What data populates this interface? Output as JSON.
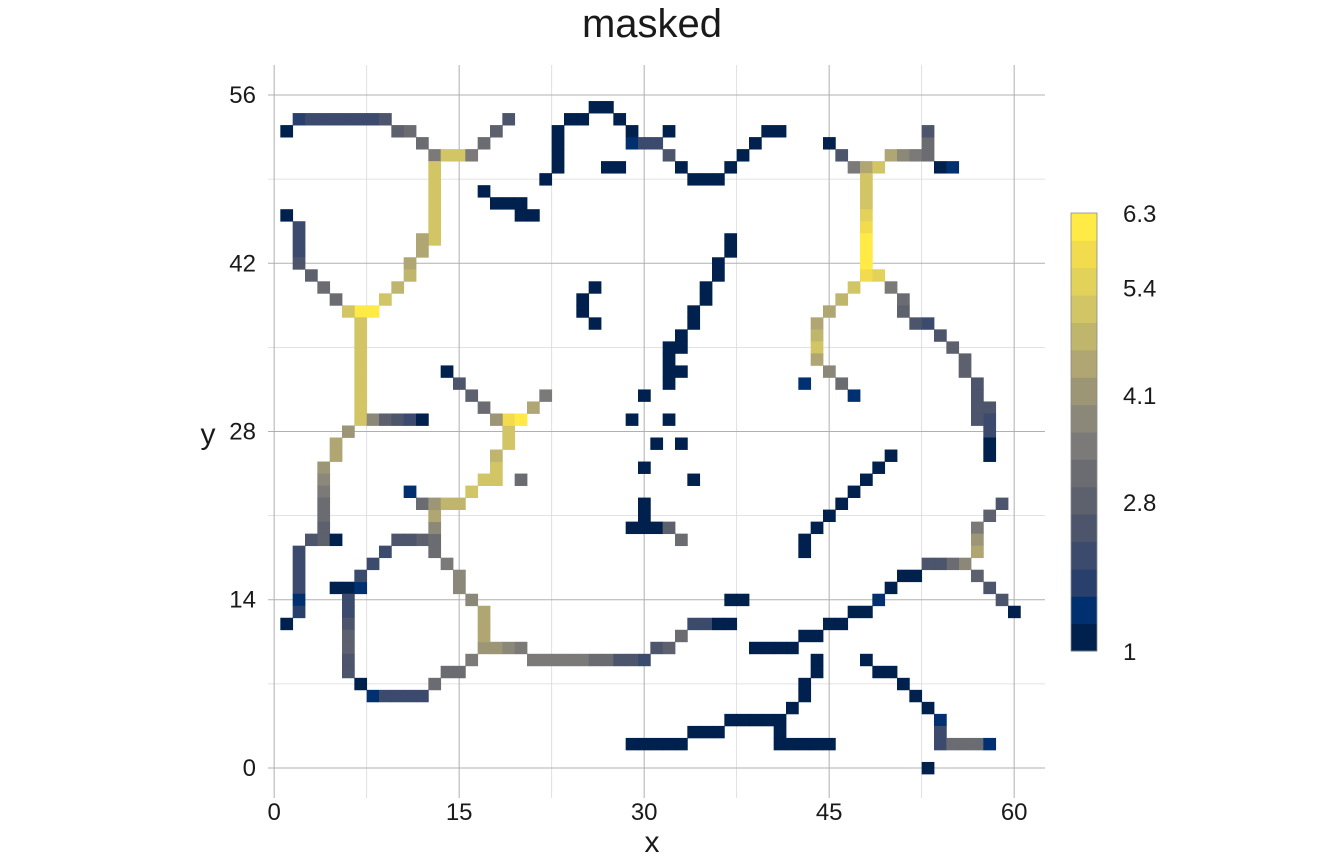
{
  "chart_data": {
    "type": "heatmap",
    "title": "masked",
    "xlabel": "x",
    "ylabel": "y",
    "xlim": [
      -0.5,
      62.5
    ],
    "ylim": [
      -2.5,
      58.5
    ],
    "x_ticks": [
      0,
      15,
      30,
      45,
      60
    ],
    "y_ticks": [
      0,
      14,
      28,
      42,
      56
    ],
    "grid": true,
    "legend_position": "right",
    "colorbar": {
      "min": 1,
      "max": 6.3,
      "tick_values": [
        6.3,
        5.4,
        4.1,
        2.8,
        1
      ],
      "tick_labels": [
        "6.3",
        "5.4",
        "4.1",
        "2.8",
        "1"
      ],
      "colors": [
        "#00204d",
        "#00306f",
        "#2a406c",
        "#3c4a6e",
        "#4c556b",
        "#5d616e",
        "#6b6c72",
        "#7b7a78",
        "#8c8879",
        "#9c9677",
        "#afa673",
        "#c0b56d",
        "#d2c566",
        "#e3d25a",
        "#f2dc4d",
        "#ffea46"
      ]
    },
    "cell_size": 1,
    "cells": [
      [
        1,
        53,
        1.1
      ],
      [
        2,
        54,
        1.8
      ],
      [
        3,
        54,
        2.1
      ],
      [
        4,
        54,
        2.2
      ],
      [
        5,
        54,
        2.2
      ],
      [
        6,
        54,
        2.2
      ],
      [
        7,
        54,
        2.2
      ],
      [
        8,
        54,
        2.2
      ],
      [
        9,
        54,
        2.4
      ],
      [
        10,
        53,
        2.9
      ],
      [
        11,
        53,
        3.2
      ],
      [
        12,
        52,
        3.3
      ],
      [
        13,
        51,
        3.6
      ],
      [
        14,
        51,
        5.0
      ],
      [
        15,
        51,
        5.0
      ],
      [
        16,
        51,
        3.5
      ],
      [
        17,
        52,
        3.3
      ],
      [
        18,
        53,
        2.8
      ],
      [
        19,
        54,
        2.5
      ],
      [
        13,
        50,
        5.0
      ],
      [
        13,
        49,
        5.0
      ],
      [
        13,
        48,
        5.0
      ],
      [
        13,
        47,
        5.0
      ],
      [
        13,
        46,
        5.0
      ],
      [
        13,
        45,
        5.0
      ],
      [
        13,
        44,
        5.0
      ],
      [
        12,
        44,
        4.6
      ],
      [
        12,
        43,
        4.6
      ],
      [
        11,
        42,
        4.4
      ],
      [
        11,
        41,
        4.8
      ],
      [
        10,
        40,
        4.8
      ],
      [
        9,
        39,
        5.0
      ],
      [
        8,
        38,
        6.1
      ],
      [
        7,
        38,
        6.3
      ],
      [
        6,
        38,
        5.0
      ],
      [
        1,
        46,
        1.1
      ],
      [
        2,
        45,
        2.0
      ],
      [
        2,
        44,
        2.2
      ],
      [
        2,
        43,
        2.3
      ],
      [
        2,
        42,
        2.4
      ],
      [
        3,
        41,
        2.8
      ],
      [
        4,
        40,
        3.0
      ],
      [
        5,
        39,
        3.3
      ],
      [
        7,
        37,
        5.0
      ],
      [
        7,
        36,
        5.0
      ],
      [
        7,
        35,
        5.0
      ],
      [
        7,
        34,
        5.0
      ],
      [
        7,
        33,
        5.0
      ],
      [
        7,
        32,
        5.0
      ],
      [
        7,
        31,
        5.0
      ],
      [
        7,
        30,
        5.0
      ],
      [
        7,
        29,
        5.0
      ],
      [
        8,
        29,
        3.8
      ],
      [
        9,
        29,
        2.8
      ],
      [
        10,
        29,
        2.5
      ],
      [
        11,
        29,
        2.2
      ],
      [
        12,
        29,
        1.3
      ],
      [
        6,
        28,
        4.2
      ],
      [
        5,
        27,
        4.5
      ],
      [
        5,
        26,
        4.5
      ],
      [
        4,
        25,
        4.2
      ],
      [
        4,
        24,
        3.8
      ],
      [
        4,
        23,
        3.5
      ],
      [
        4,
        22,
        3.0
      ],
      [
        4,
        21,
        3.0
      ],
      [
        4,
        20,
        2.8
      ],
      [
        3,
        19,
        2.6
      ],
      [
        4,
        19,
        2.9
      ],
      [
        5,
        19,
        1.2
      ],
      [
        2,
        18,
        2.0
      ],
      [
        2,
        17,
        2.2
      ],
      [
        2,
        16,
        2.2
      ],
      [
        2,
        15,
        2.2
      ],
      [
        2,
        14,
        1.6
      ],
      [
        2,
        13,
        1.8
      ],
      [
        1,
        12,
        1.1
      ],
      [
        5,
        15,
        1.1
      ],
      [
        6,
        15,
        1.2
      ],
      [
        7,
        15,
        1.4
      ],
      [
        6,
        14,
        2.3
      ],
      [
        6,
        13,
        2.3
      ],
      [
        6,
        12,
        2.5
      ],
      [
        6,
        11,
        2.8
      ],
      [
        6,
        10,
        2.7
      ],
      [
        6,
        9,
        2.6
      ],
      [
        6,
        8,
        2.5
      ],
      [
        7,
        7,
        1.3
      ],
      [
        8,
        6,
        1.4
      ],
      [
        9,
        6,
        2.3
      ],
      [
        10,
        6,
        2.3
      ],
      [
        11,
        6,
        2.3
      ],
      [
        12,
        6,
        2.3
      ],
      [
        13,
        7,
        3.2
      ],
      [
        14,
        8,
        3.2
      ],
      [
        15,
        8,
        3.2
      ],
      [
        16,
        9,
        3.4
      ],
      [
        17,
        10,
        4.0
      ],
      [
        17,
        11,
        4.4
      ],
      [
        17,
        12,
        4.4
      ],
      [
        17,
        13,
        4.4
      ],
      [
        16,
        14,
        3.9
      ],
      [
        15,
        15,
        3.8
      ],
      [
        15,
        16,
        3.9
      ],
      [
        14,
        17,
        3.4
      ],
      [
        13,
        18,
        3.0
      ],
      [
        12,
        19,
        2.8
      ],
      [
        11,
        19,
        2.6
      ],
      [
        10,
        19,
        2.5
      ],
      [
        9,
        18,
        2.3
      ],
      [
        8,
        17,
        2.2
      ],
      [
        7,
        16,
        2.0
      ],
      [
        13,
        19,
        3.0
      ],
      [
        13,
        20,
        3.8
      ],
      [
        13,
        21,
        4.4
      ],
      [
        12,
        22,
        3.3
      ],
      [
        11,
        23,
        1.4
      ],
      [
        13,
        22,
        4.2
      ],
      [
        14,
        22,
        4.7
      ],
      [
        15,
        22,
        4.9
      ],
      [
        16,
        23,
        5.0
      ],
      [
        17,
        24,
        5.1
      ],
      [
        18,
        24,
        5.2
      ],
      [
        18,
        25,
        5.0
      ],
      [
        18,
        26,
        4.8
      ],
      [
        19,
        27,
        5.1
      ],
      [
        19,
        28,
        5.2
      ],
      [
        19,
        29,
        5.8
      ],
      [
        20,
        29,
        6.0
      ],
      [
        18,
        29,
        4.0
      ],
      [
        17,
        30,
        3.2
      ],
      [
        16,
        31,
        2.8
      ],
      [
        15,
        32,
        2.4
      ],
      [
        14,
        33,
        1.2
      ],
      [
        21,
        30,
        4.5
      ],
      [
        22,
        31,
        3.6
      ],
      [
        20,
        24,
        3.0
      ],
      [
        18,
        10,
        4.0
      ],
      [
        19,
        10,
        3.9
      ],
      [
        20,
        10,
        3.5
      ],
      [
        21,
        9,
        3.4
      ],
      [
        22,
        9,
        3.4
      ],
      [
        23,
        9,
        3.4
      ],
      [
        24,
        9,
        3.4
      ],
      [
        25,
        9,
        3.4
      ],
      [
        26,
        9,
        3.2
      ],
      [
        27,
        9,
        3.0
      ],
      [
        28,
        9,
        2.6
      ],
      [
        29,
        9,
        2.4
      ],
      [
        30,
        9,
        2.2
      ],
      [
        31,
        10,
        2.6
      ],
      [
        32,
        10,
        2.8
      ],
      [
        33,
        11,
        3.0
      ],
      [
        34,
        12,
        2.3
      ],
      [
        35,
        12,
        2.2
      ],
      [
        36,
        12,
        1.3
      ],
      [
        37,
        12,
        1.1
      ],
      [
        31,
        20,
        1.1
      ],
      [
        29,
        20,
        1.1
      ],
      [
        30,
        20,
        1.2
      ],
      [
        30,
        21,
        1.1
      ],
      [
        30,
        22,
        1.1
      ],
      [
        32,
        20,
        2.8
      ],
      [
        33,
        19,
        3.2
      ],
      [
        29,
        29,
        1.1
      ],
      [
        30,
        31,
        1.1
      ],
      [
        31,
        27,
        1.1
      ],
      [
        33,
        27,
        1.1
      ],
      [
        30,
        25,
        1.1
      ],
      [
        32,
        29,
        1.1
      ],
      [
        34,
        24,
        1.1
      ],
      [
        17,
        48,
        1.1
      ],
      [
        18,
        47,
        1.2
      ],
      [
        19,
        47,
        1.1
      ],
      [
        20,
        47,
        1.1
      ],
      [
        21,
        46,
        1.1
      ],
      [
        22,
        49,
        1.1
      ],
      [
        23,
        50,
        1.1
      ],
      [
        23,
        51,
        1.1
      ],
      [
        23,
        52,
        1.1
      ],
      [
        23,
        53,
        1.1
      ],
      [
        24,
        54,
        1.1
      ],
      [
        25,
        54,
        1.2
      ],
      [
        26,
        55,
        1.2
      ],
      [
        27,
        55,
        1.1
      ],
      [
        28,
        54,
        1.1
      ],
      [
        29,
        53,
        1.2
      ],
      [
        29,
        52,
        1.4
      ],
      [
        30,
        52,
        2.0
      ],
      [
        31,
        52,
        2.2
      ],
      [
        32,
        51,
        2.6
      ],
      [
        32,
        53,
        1.1
      ],
      [
        33,
        50,
        1.1
      ],
      [
        34,
        49,
        1.1
      ],
      [
        35,
        49,
        1.2
      ],
      [
        36,
        49,
        1.3
      ],
      [
        37,
        50,
        1.1
      ],
      [
        38,
        51,
        1.1
      ],
      [
        39,
        52,
        1.1
      ],
      [
        40,
        53,
        1.1
      ],
      [
        41,
        53,
        1.1
      ],
      [
        28,
        50,
        1.1
      ],
      [
        27,
        50,
        1.1
      ],
      [
        20,
        46,
        1.1
      ],
      [
        26,
        40,
        1.1
      ],
      [
        25,
        39,
        1.1
      ],
      [
        25,
        38,
        1.1
      ],
      [
        26,
        37,
        1.1
      ],
      [
        37,
        44,
        1.1
      ],
      [
        37,
        43,
        1.1
      ],
      [
        36,
        42,
        1.1
      ],
      [
        36,
        41,
        1.1
      ],
      [
        35,
        40,
        1.1
      ],
      [
        35,
        39,
        1.1
      ],
      [
        34,
        38,
        1.1
      ],
      [
        34,
        37,
        1.1
      ],
      [
        33,
        36,
        1.1
      ],
      [
        33,
        35,
        1.1
      ],
      [
        32,
        34,
        1.1
      ],
      [
        32,
        33,
        1.1
      ],
      [
        32,
        32,
        1.1
      ],
      [
        33,
        33,
        1.1
      ],
      [
        32,
        35,
        1.1
      ],
      [
        45,
        52,
        1.1
      ],
      [
        46,
        51,
        2.6
      ],
      [
        47,
        50,
        3.6
      ],
      [
        48,
        50,
        4.6
      ],
      [
        49,
        50,
        5.0
      ],
      [
        50,
        51,
        4.4
      ],
      [
        51,
        51,
        3.8
      ],
      [
        52,
        51,
        3.6
      ],
      [
        53,
        52,
        3.2
      ],
      [
        53,
        53,
        2.6
      ],
      [
        53,
        51,
        3.3
      ],
      [
        54,
        50,
        1.1
      ],
      [
        55,
        50,
        1.4
      ],
      [
        48,
        49,
        5.0
      ],
      [
        48,
        48,
        5.0
      ],
      [
        48,
        47,
        5.2
      ],
      [
        48,
        46,
        5.4
      ],
      [
        48,
        45,
        5.8
      ],
      [
        48,
        44,
        6.0
      ],
      [
        48,
        43,
        6.2
      ],
      [
        48,
        42,
        6.3
      ],
      [
        48,
        41,
        5.8
      ],
      [
        49,
        41,
        5.4
      ],
      [
        47,
        40,
        5.0
      ],
      [
        46,
        39,
        4.8
      ],
      [
        45,
        38,
        4.6
      ],
      [
        44,
        37,
        4.5
      ],
      [
        44,
        36,
        4.8
      ],
      [
        44,
        35,
        5.0
      ],
      [
        44,
        34,
        4.5
      ],
      [
        45,
        33,
        3.8
      ],
      [
        46,
        32,
        3.3
      ],
      [
        47,
        31,
        1.4
      ],
      [
        43,
        32,
        1.5
      ],
      [
        50,
        40,
        3.6
      ],
      [
        51,
        39,
        3.0
      ],
      [
        51,
        38,
        2.8
      ],
      [
        52,
        37,
        2.6
      ],
      [
        53,
        37,
        2.2
      ],
      [
        54,
        36,
        2.6
      ],
      [
        55,
        35,
        2.8
      ],
      [
        56,
        34,
        2.8
      ],
      [
        56,
        33,
        2.8
      ],
      [
        57,
        32,
        2.6
      ],
      [
        57,
        31,
        2.5
      ],
      [
        58,
        30,
        2.4
      ],
      [
        58,
        29,
        2.2
      ],
      [
        58,
        28,
        2.0
      ],
      [
        58,
        27,
        1.3
      ],
      [
        58,
        26,
        1.1
      ],
      [
        57,
        30,
        2.6
      ],
      [
        57,
        29,
        2.6
      ],
      [
        50,
        26,
        1.1
      ],
      [
        49,
        25,
        1.1
      ],
      [
        48,
        24,
        1.1
      ],
      [
        47,
        23,
        1.1
      ],
      [
        46,
        22,
        1.1
      ],
      [
        45,
        21,
        1.1
      ],
      [
        44,
        20,
        1.1
      ],
      [
        43,
        19,
        1.1
      ],
      [
        43,
        18,
        1.1
      ],
      [
        59,
        22,
        2.6
      ],
      [
        58,
        21,
        2.8
      ],
      [
        57,
        20,
        3.5
      ],
      [
        57,
        19,
        4.3
      ],
      [
        57,
        18,
        4.4
      ],
      [
        56,
        17,
        3.8
      ],
      [
        55,
        17,
        3.2
      ],
      [
        54,
        17,
        2.6
      ],
      [
        53,
        17,
        2.4
      ],
      [
        52,
        16,
        1.3
      ],
      [
        51,
        16,
        1.3
      ],
      [
        50,
        15,
        1.3
      ],
      [
        49,
        14,
        1.5
      ],
      [
        48,
        13,
        1.1
      ],
      [
        47,
        13,
        1.1
      ],
      [
        46,
        12,
        1.1
      ],
      [
        45,
        12,
        1.1
      ],
      [
        44,
        11,
        1.1
      ],
      [
        43,
        11,
        1.1
      ],
      [
        42,
        10,
        1.1
      ],
      [
        41,
        10,
        1.1
      ],
      [
        40,
        10,
        1.1
      ],
      [
        39,
        10,
        1.1
      ],
      [
        57,
        16,
        2.8
      ],
      [
        58,
        15,
        2.6
      ],
      [
        59,
        14,
        2.5
      ],
      [
        60,
        13,
        1.1
      ],
      [
        37,
        14,
        1.1
      ],
      [
        38,
        14,
        1.1
      ],
      [
        44,
        9,
        1.1
      ],
      [
        44,
        8,
        1.1
      ],
      [
        43,
        7,
        1.1
      ],
      [
        43,
        6,
        1.1
      ],
      [
        42,
        5,
        1.1
      ],
      [
        41,
        4,
        1.1
      ],
      [
        41,
        3,
        1.1
      ],
      [
        41,
        2,
        1.3
      ],
      [
        40,
        4,
        1.1
      ],
      [
        39,
        4,
        1.1
      ],
      [
        38,
        4,
        1.1
      ],
      [
        37,
        4,
        1.1
      ],
      [
        36,
        3,
        1.1
      ],
      [
        35,
        3,
        1.1
      ],
      [
        34,
        3,
        1.1
      ],
      [
        33,
        2,
        1.1
      ],
      [
        32,
        2,
        1.1
      ],
      [
        31,
        2,
        1.1
      ],
      [
        30,
        2,
        1.1
      ],
      [
        29,
        2,
        1.1
      ],
      [
        42,
        2,
        1.1
      ],
      [
        43,
        2,
        1.1
      ],
      [
        44,
        2,
        1.1
      ],
      [
        45,
        2,
        1.1
      ],
      [
        48,
        9,
        1.1
      ],
      [
        49,
        8,
        1.1
      ],
      [
        50,
        8,
        1.1
      ],
      [
        51,
        7,
        1.1
      ],
      [
        52,
        6,
        1.1
      ],
      [
        53,
        5,
        1.1
      ],
      [
        54,
        4,
        1.6
      ],
      [
        54,
        3,
        2.0
      ],
      [
        54,
        2,
        2.2
      ],
      [
        55,
        2,
        3.0
      ],
      [
        56,
        2,
        3.3
      ],
      [
        57,
        2,
        3.2
      ],
      [
        58,
        2,
        1.4
      ],
      [
        53,
        0,
        1.3
      ]
    ]
  }
}
